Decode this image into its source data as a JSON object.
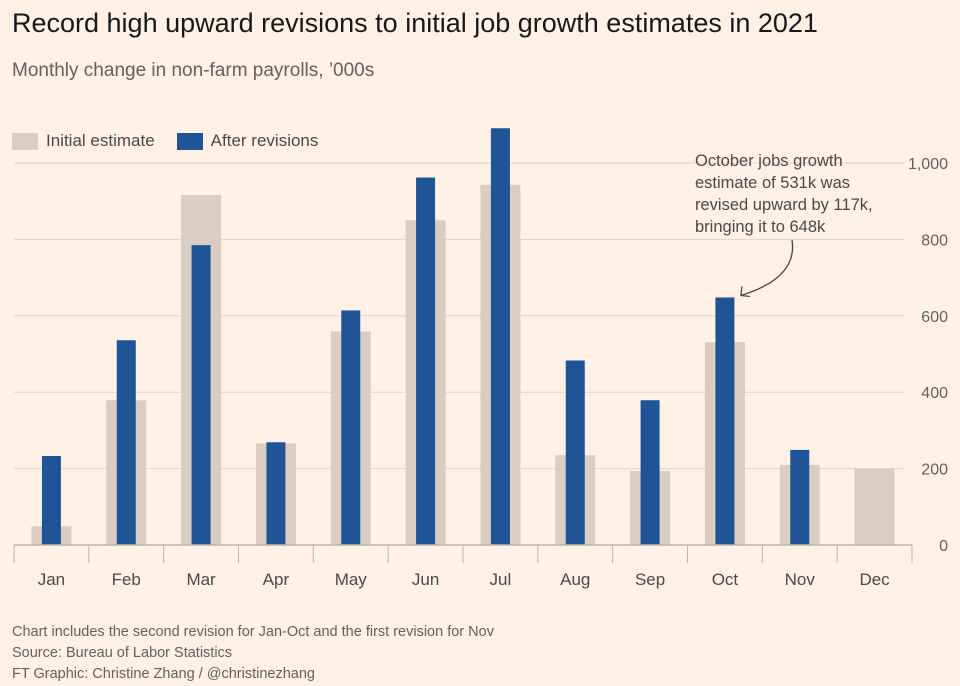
{
  "title": "Record high upward revisions to initial job growth estimates in 2021",
  "subtitle": "Monthly change in non-farm payrolls, ’000s",
  "legend": [
    {
      "label": "Initial estimate",
      "color": "#d9cdc4"
    },
    {
      "label": "After revisions",
      "color": "#1f5496"
    }
  ],
  "annotation": {
    "lines": [
      "October jobs growth",
      "estimate of 531k was",
      "revised upward by 117k,",
      "bringing it to 648k"
    ]
  },
  "footer": {
    "note": "Chart includes the second revision for Jan-Oct and the first revision for Nov",
    "source": "Source: Bureau of Labor Statistics",
    "credit": "FT Graphic: Christine Zhang / @christinezhang"
  },
  "chart_data": {
    "type": "bar",
    "categories": [
      "Jan",
      "Feb",
      "Mar",
      "Apr",
      "May",
      "Jun",
      "Jul",
      "Aug",
      "Sep",
      "Oct",
      "Nov",
      "Dec"
    ],
    "series": [
      {
        "name": "Initial estimate",
        "values": [
          49,
          379,
          916,
          266,
          559,
          850,
          943,
          235,
          194,
          531,
          210,
          199
        ]
      },
      {
        "name": "After revisions",
        "values": [
          233,
          536,
          785,
          269,
          614,
          962,
          1091,
          483,
          379,
          648,
          249,
          null
        ]
      }
    ],
    "y_ticks": [
      0,
      200,
      400,
      600,
      800,
      1000
    ],
    "y_tick_labels": [
      "0",
      "200",
      "400",
      "600",
      "800",
      "1,000"
    ],
    "ylim": [
      0,
      1100
    ],
    "y_axis_side": "right",
    "grid": true,
    "legend_position": "top-left",
    "colors": {
      "initial": "#d9cdc4",
      "revised": "#1f5496",
      "grid": "#e3d5ca",
      "axis": "#bfb4ab"
    }
  }
}
